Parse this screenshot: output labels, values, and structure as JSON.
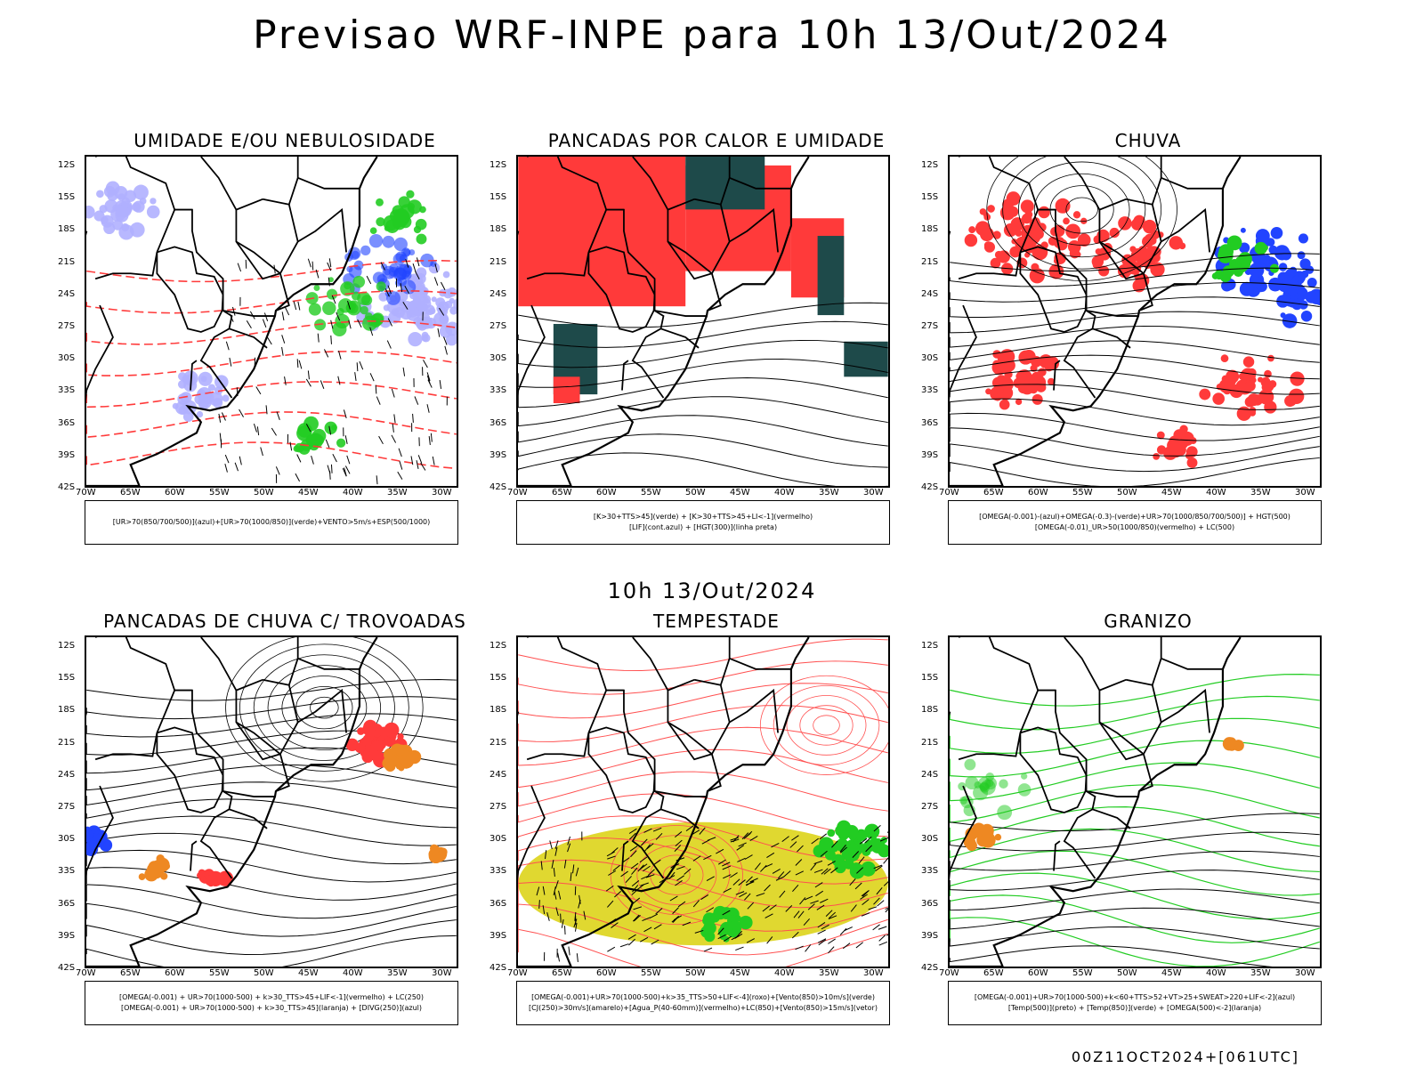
{
  "title": "Previsao WRF-INPE  para 10h 13/Out/2024",
  "subtitle": "10h 13/Out/2024",
  "footer": "00Z11OCT2024+[061UTC]",
  "lat_labels": [
    "12S",
    "15S",
    "18S",
    "21S",
    "24S",
    "27S",
    "30S",
    "33S",
    "36S",
    "39S",
    "42S"
  ],
  "lon_labels": [
    "70W",
    "65W",
    "60W",
    "55W",
    "50W",
    "45W",
    "40W",
    "35W",
    "30W"
  ],
  "colors": {
    "red": "#ff3a3a",
    "green": "#22cc22",
    "blue": "#2244ff",
    "lavender": "#b0b0ff",
    "darkteal": "#1e4a4a",
    "yellow": "#e0d830",
    "orange": "#ee8822"
  },
  "panels": [
    {
      "title": "UMIDADE E/OU NEBULOSIDADE",
      "legend": [
        "[UR>70(850/700/500)](azul)+[UR>70(1000/850)](verde)+VENTO>5m/s+ESP(500/1000)"
      ],
      "style": "umidade"
    },
    {
      "title": "PANCADAS POR CALOR E UMIDADE",
      "legend": [
        "[K>30+TTS>45](verde) + [K>30+TTS>45+LI<-1](vermelho)",
        "[LIF](cont.azul) + [HGT(300)](linha preta)"
      ],
      "style": "pancadas"
    },
    {
      "title": "CHUVA",
      "legend": [
        "[OMEGA(-0.001)-(azul)+OMEGA(-0.3)-(verde)+UR>70(1000/850/700/500)] + HGT(500)",
        "[OMEGA(-0.01)_UR>50(1000/850)(vermelho) + LC(500)"
      ],
      "style": "chuva"
    },
    {
      "title": "PANCADAS DE CHUVA C/ TROVOADAS",
      "legend": [
        "[OMEGA(-0.001) + UR>70(1000-500) + k>30_TTS>45+LIF<-1](vermelho) + LC(250)",
        "[OMEGA(-0.001) + UR>70(1000-500) + k>30_TTS>45](laranja) + [DIVG(250)](azul)"
      ],
      "style": "trovoadas"
    },
    {
      "title": "TEMPESTADE",
      "legend": [
        "[OMEGA(-0.001)+UR>70(1000-500)+k>35_TTS>50+LIF<-4](roxo)+[Vento(850)>10m/s](verde)",
        "[CJ(250)>30m/s](amarelo)+[Agua_P(40-60mm)](vermelho)+LC(850)+[Vento(850)>15m/s](vetor)"
      ],
      "style": "tempestade"
    },
    {
      "title": "GRANIZO",
      "legend": [
        "[OMEGA(-0.001)+UR>70(1000-500)+k<60+TTS>52+VT>25+SWEAT>220+LIF<-2](azul)",
        "[Temp(500)](preto) + [Temp(850)](verde) + [OMEGA(500)<-2](laranja)"
      ],
      "style": "granizo"
    }
  ]
}
